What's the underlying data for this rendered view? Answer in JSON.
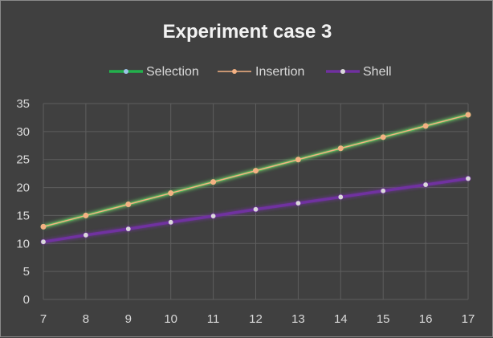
{
  "chart_data": {
    "type": "line",
    "title": "Experiment case 3",
    "x": [
      7,
      8,
      9,
      10,
      11,
      12,
      13,
      14,
      15,
      16,
      17
    ],
    "xlim": [
      7,
      17
    ],
    "ylim": [
      0,
      35
    ],
    "yticks": [
      0,
      5,
      10,
      15,
      20,
      25,
      30,
      35
    ],
    "grid": true,
    "legend_position": "top",
    "series": [
      {
        "name": "Selection",
        "color": "#22b14c",
        "marker_color": "#9dc3e6",
        "values": [
          13,
          15,
          17,
          19,
          21,
          23,
          25,
          27,
          29,
          31,
          33
        ]
      },
      {
        "name": "Insertion",
        "color": "#f4b183",
        "marker_color": "#f4b183",
        "values": [
          13,
          15,
          17,
          19,
          21,
          23,
          25,
          27,
          29,
          31,
          33
        ]
      },
      {
        "name": "Shell",
        "color": "#7030a0",
        "marker_color": "#d9d9d9",
        "values": [
          10.3,
          11.5,
          12.6,
          13.8,
          14.9,
          16.1,
          17.2,
          18.3,
          19.4,
          20.5,
          21.6
        ]
      }
    ]
  }
}
